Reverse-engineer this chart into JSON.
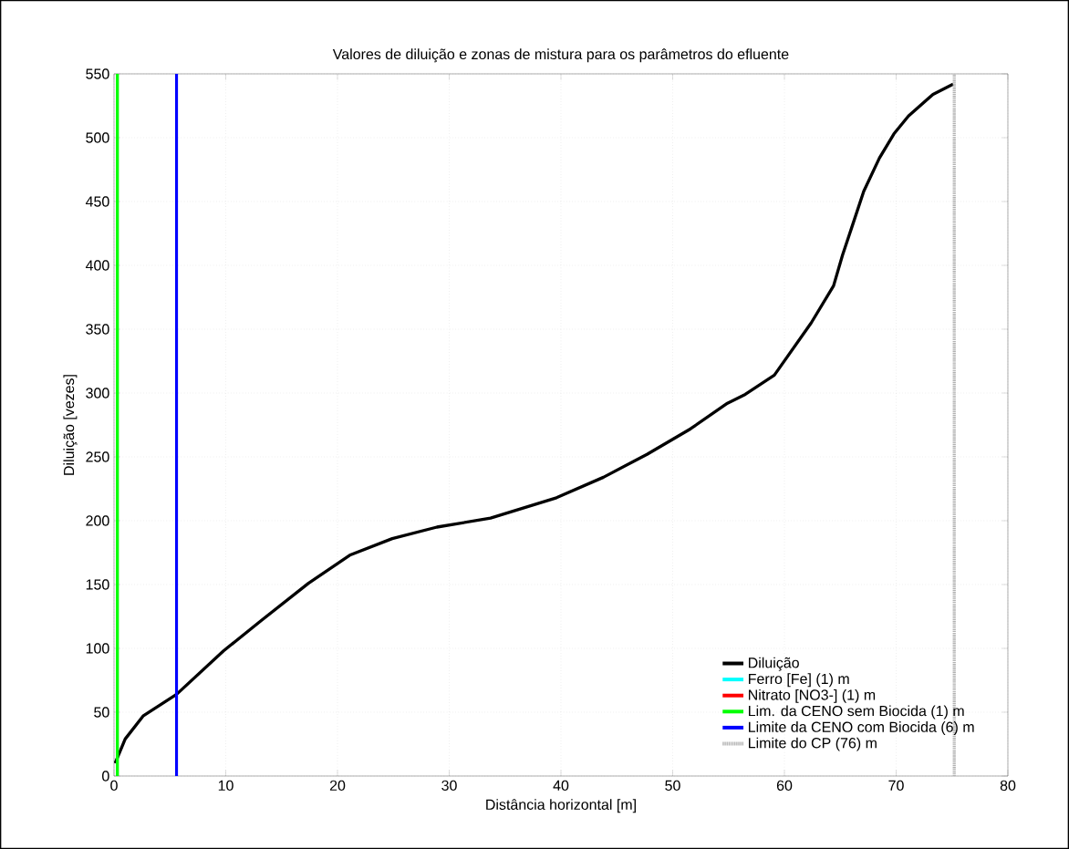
{
  "chart_data": {
    "type": "line",
    "title": "Valores de diluição e zonas de mistura para os parâmetros do efluente",
    "xlabel": "Distância horizontal [m]",
    "ylabel": "Diluição [vezes]",
    "xlim": [
      0,
      80
    ],
    "ylim": [
      0,
      550
    ],
    "xticks": [
      0,
      10,
      20,
      30,
      40,
      50,
      60,
      70,
      80
    ],
    "yticks": [
      0,
      50,
      100,
      150,
      200,
      250,
      300,
      350,
      400,
      450,
      500,
      550
    ],
    "grid": true,
    "legend": "bottom right",
    "marker": "none",
    "series": [
      {
        "name": "Diluição",
        "color": "#000000",
        "x": [
          0.1,
          1.0,
          2.6,
          5.6,
          9.8,
          13.2,
          17.4,
          21.1,
          24.9,
          28.9,
          33.7,
          39.6,
          43.8,
          47.7,
          51.6,
          54.9,
          56.5,
          59.1,
          62.4,
          64.4,
          65.2,
          66.0,
          67.1,
          68.5,
          69.8,
          71.1,
          73.3,
          75.1
        ],
        "values": [
          10,
          29,
          47,
          64,
          98,
          122,
          151,
          173,
          186,
          195,
          202,
          218,
          234,
          252,
          272,
          292,
          299,
          314,
          355,
          384,
          408,
          429,
          458,
          484,
          503,
          517,
          534,
          542
        ]
      },
      {
        "name": "Ferro [Fe] (1) m",
        "color": "#00ffff",
        "values": [
          null,
          null
        ]
      },
      {
        "name": "Nitrato [NO3-] (1) m",
        "color": "#ff0000",
        "values": [
          null,
          null
        ]
      },
      {
        "name": "Lim. da CENO sem Biocida (1) m",
        "color": "#00ff00",
        "x": [
          0.3,
          0.3
        ],
        "values": [
          0,
          550
        ]
      },
      {
        "name": "Limite da CENO com Biocida (6) m",
        "color": "#0000ff",
        "x": [
          5.6,
          5.6
        ],
        "values": [
          0,
          550
        ]
      },
      {
        "name": "Limite do CP (76) m",
        "color": "#b0b0b0",
        "line_style": "dotted",
        "x": [
          75.2,
          75.2
        ],
        "values": [
          0,
          550
        ]
      }
    ]
  }
}
